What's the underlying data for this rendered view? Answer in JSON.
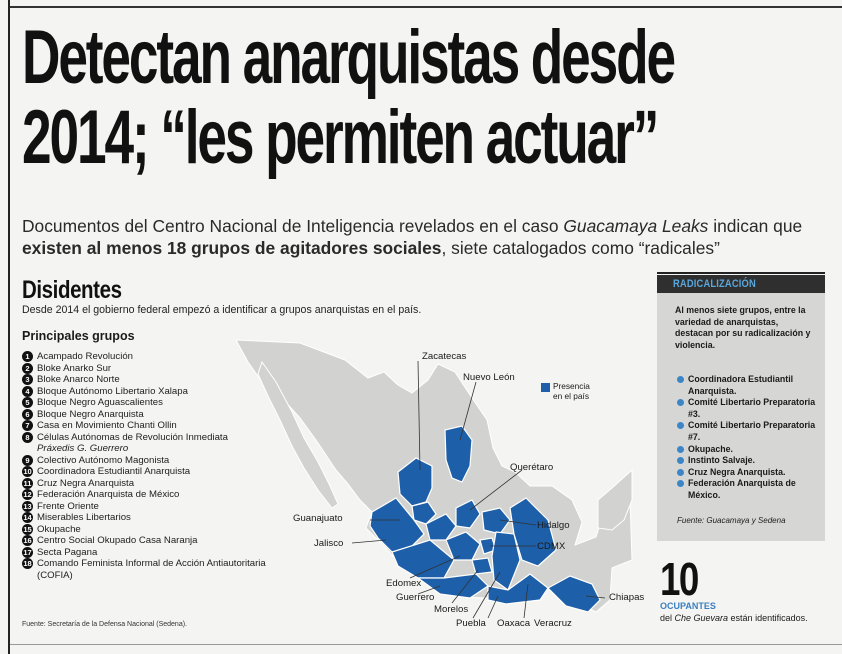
{
  "headline": {
    "line1": "Detectan anarquistas desde",
    "line2": "2014; “les permiten actuar”"
  },
  "dek": {
    "part1": "Documentos del Centro Nacional de Inteligencia revelados en el caso ",
    "italic": "Guacamaya Leaks",
    "part2": " indican que ",
    "bold": "existen al menos 18 grupos de agitadores sociales",
    "part3": ", siete catalogados como “radicales”"
  },
  "graphic": {
    "title": "Disidentes",
    "subtitle": "Desde 2014 el gobierno federal empezó a identificar a grupos anarquistas en el país.",
    "list_title": "Principales grupos",
    "groups": [
      {
        "n": "1",
        "name": "Acampado Revolución"
      },
      {
        "n": "2",
        "name": "Bloke Anarko Sur"
      },
      {
        "n": "3",
        "name": "Bloke Anarco Norte"
      },
      {
        "n": "4",
        "name": "Bloque Autónomo Libertario Xalapa"
      },
      {
        "n": "5",
        "name": "Bloque Negro Aguascalientes"
      },
      {
        "n": "6",
        "name": "Bloque Negro Anarquista"
      },
      {
        "n": "7",
        "name": "Casa en Movimiento Chanti Ollin"
      },
      {
        "n": "8",
        "name": "Células Autónomas de Revolución Inmediata"
      },
      {
        "n": "",
        "name": "Práxedis G. Guerrero"
      },
      {
        "n": "9",
        "name": "Colectivo Autónomo Magonista"
      },
      {
        "n": "10",
        "name": "Coordinadora Estudiantil Anarquista"
      },
      {
        "n": "11",
        "name": "Cruz Negra Anarquista"
      },
      {
        "n": "12",
        "name": "Federación Anarquista de México"
      },
      {
        "n": "13",
        "name": "Frente Oriente"
      },
      {
        "n": "14",
        "name": "Miserables Libertarios"
      },
      {
        "n": "15",
        "name": "Okupache"
      },
      {
        "n": "16",
        "name": "Centro Social Okupado Casa Naranja"
      },
      {
        "n": "17",
        "name": "Secta Pagana"
      },
      {
        "n": "18",
        "name": "Comando Feminista Informal de Acción Antiautoritaria (COFIA)"
      }
    ],
    "source": "Fuente: Secretaría de la Defensa Nacional (Sedena).",
    "legend": {
      "line1": "Presencia",
      "line2": "en el país"
    },
    "map_labels": {
      "zacatecas": "Zacatecas",
      "nuevo_leon": "Nuevo León",
      "queretaro": "Querétaro",
      "guanajuato": "Guanajuato",
      "jalisco": "Jalisco",
      "hidalgo": "Hidalgo",
      "cdmx": "CDMX",
      "edomex": "Edomex",
      "guerrero": "Guerrero",
      "morelos": "Morelos",
      "puebla": "Puebla",
      "oaxaca": "Oaxaca",
      "veracruz": "Veracruz",
      "chiapas": "Chiapas"
    },
    "colors": {
      "presence": "#1d5fa8",
      "land": "#d2d2d0",
      "accent": "#3c86c6"
    }
  },
  "sidebar": {
    "header": "RADICALIZACIÓN",
    "intro": "Al menos siete grupos, entre la variedad de anarquistas, destacan por su radicalización y violencia.",
    "items": [
      "Coordinadora Estudiantil Anarquista.",
      "Comité Libertario Preparatoria #3.",
      "Comité Libertario Preparatoria #7.",
      "Okupache.",
      "Instinto Salvaje.",
      "Cruz Negra Anarquista.",
      "Federación Anarquista de México."
    ],
    "source": "Fuente: Guacamaya y Sedena"
  },
  "stat": {
    "number": "10",
    "label": "OCUPANTES",
    "text_pre": "del ",
    "text_italic": "Che Guevara",
    "text_post": " están identificados."
  }
}
